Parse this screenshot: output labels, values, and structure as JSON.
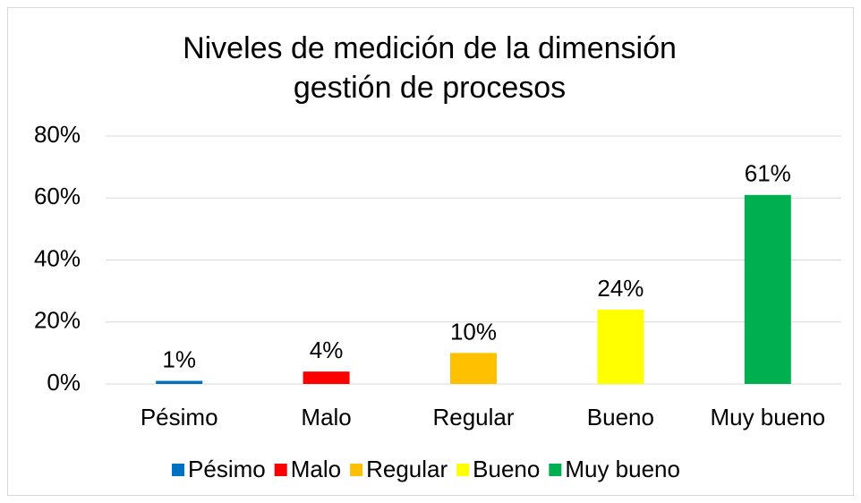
{
  "chart_data": {
    "type": "bar",
    "title": [
      "Niveles de medición de la dimensión",
      "gestión de procesos"
    ],
    "categories": [
      "Pésimo",
      "Malo",
      "Regular",
      "Bueno",
      "Muy bueno"
    ],
    "values": [
      1,
      4,
      10,
      24,
      61
    ],
    "value_labels": [
      "1%",
      "4%",
      "10%",
      "24%",
      "61%"
    ],
    "colors": [
      "#0070c0",
      "#ff0000",
      "#ffc000",
      "#ffff00",
      "#00b050"
    ],
    "ylim": [
      0,
      80
    ],
    "yticks": [
      {
        "value": 0,
        "label": "0%"
      },
      {
        "value": 20,
        "label": "20%"
      },
      {
        "value": 40,
        "label": "40%"
      },
      {
        "value": 60,
        "label": "60%"
      },
      {
        "value": 80,
        "label": "80%"
      }
    ],
    "grid": true,
    "legend": "bottom"
  }
}
